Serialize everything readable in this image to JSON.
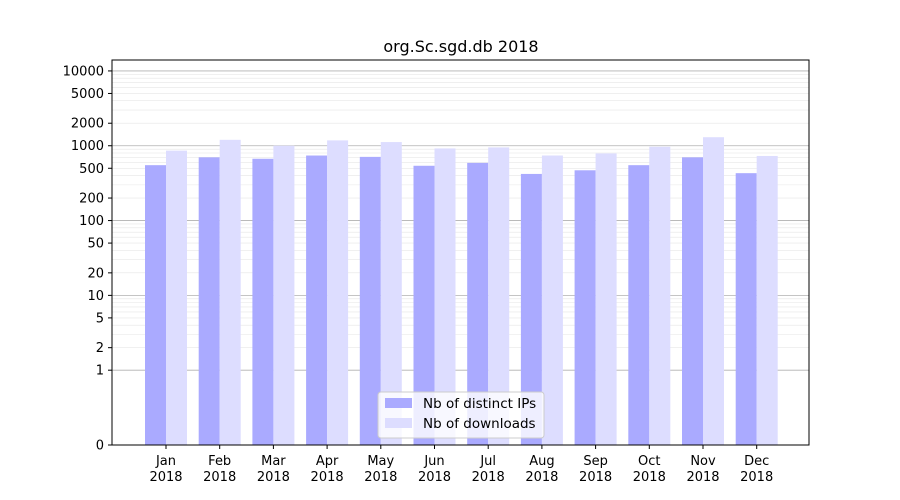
{
  "chart_data": {
    "type": "bar",
    "title": "org.Sc.sgd.db 2018",
    "xlabel": "",
    "ylabel": "",
    "yscale": "symlog",
    "ylim": [
      0,
      14000
    ],
    "yticks": [
      0,
      1,
      2,
      5,
      10,
      20,
      50,
      100,
      200,
      500,
      1000,
      2000,
      5000,
      10000
    ],
    "categories": [
      "Jan\n2018",
      "Feb\n2018",
      "Mar\n2018",
      "Apr\n2018",
      "May\n2018",
      "Jun\n2018",
      "Jul\n2018",
      "Aug\n2018",
      "Sep\n2018",
      "Oct\n2018",
      "Nov\n2018",
      "Dec\n2018"
    ],
    "series": [
      {
        "name": "Nb of distinct IPs",
        "color": "#aaaaff",
        "values": [
          550,
          700,
          670,
          740,
          710,
          540,
          590,
          420,
          470,
          550,
          700,
          430
        ]
      },
      {
        "name": "Nb of downloads",
        "color": "#ddddff",
        "values": [
          860,
          1200,
          1000,
          1180,
          1120,
          920,
          950,
          740,
          790,
          970,
          1300,
          730
        ]
      }
    ],
    "grid": true,
    "legend": "lower-center"
  }
}
